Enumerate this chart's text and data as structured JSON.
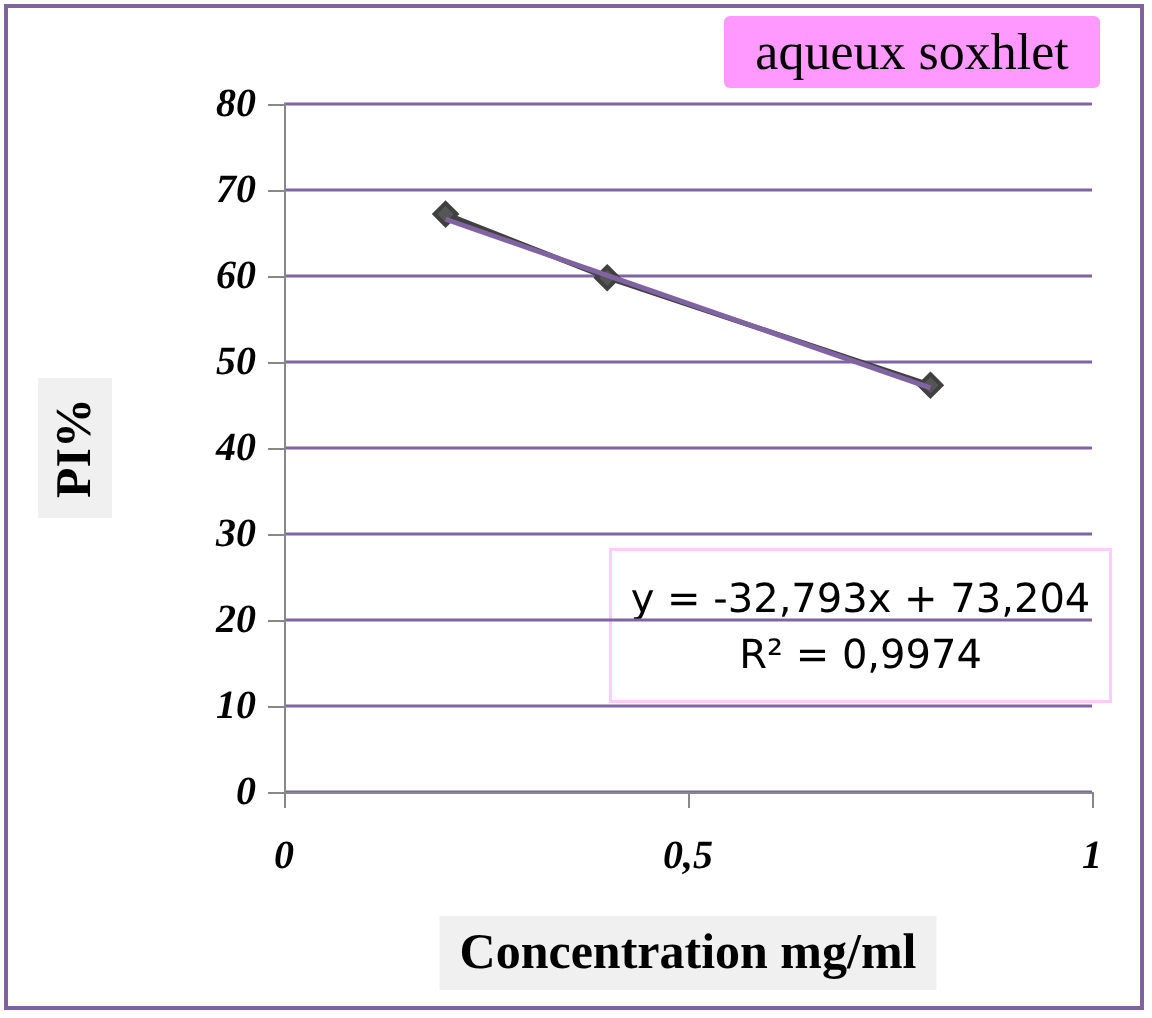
{
  "chart_data": {
    "type": "line",
    "title": "aqueux soxhlet",
    "xlabel": "Concentration mg/ml",
    "ylabel": "PI%",
    "annotations": [
      "y = -32,793x + 73,204\nR² = 0,9974"
    ],
    "series": [
      {
        "color": "#404040",
        "x": [
          0.2,
          0.4,
          0.8
        ],
        "values": [
          67.2,
          59.8,
          47.3
        ],
        "marker": "diamond"
      },
      {
        "type": "line",
        "color": "#8064a2",
        "x": [
          0.2,
          0.8
        ],
        "values": [
          66.6,
          47.0
        ],
        "marker": "none"
      }
    ],
    "xlim": [
      0,
      1
    ],
    "xticks": [
      0,
      {
        "value": 0.5,
        "label": "0,5"
      },
      1
    ],
    "ylim": [
      0,
      80
    ],
    "yticks": [
      0,
      10,
      20,
      30,
      40,
      50,
      60,
      70,
      80
    ],
    "grid": "y"
  }
}
